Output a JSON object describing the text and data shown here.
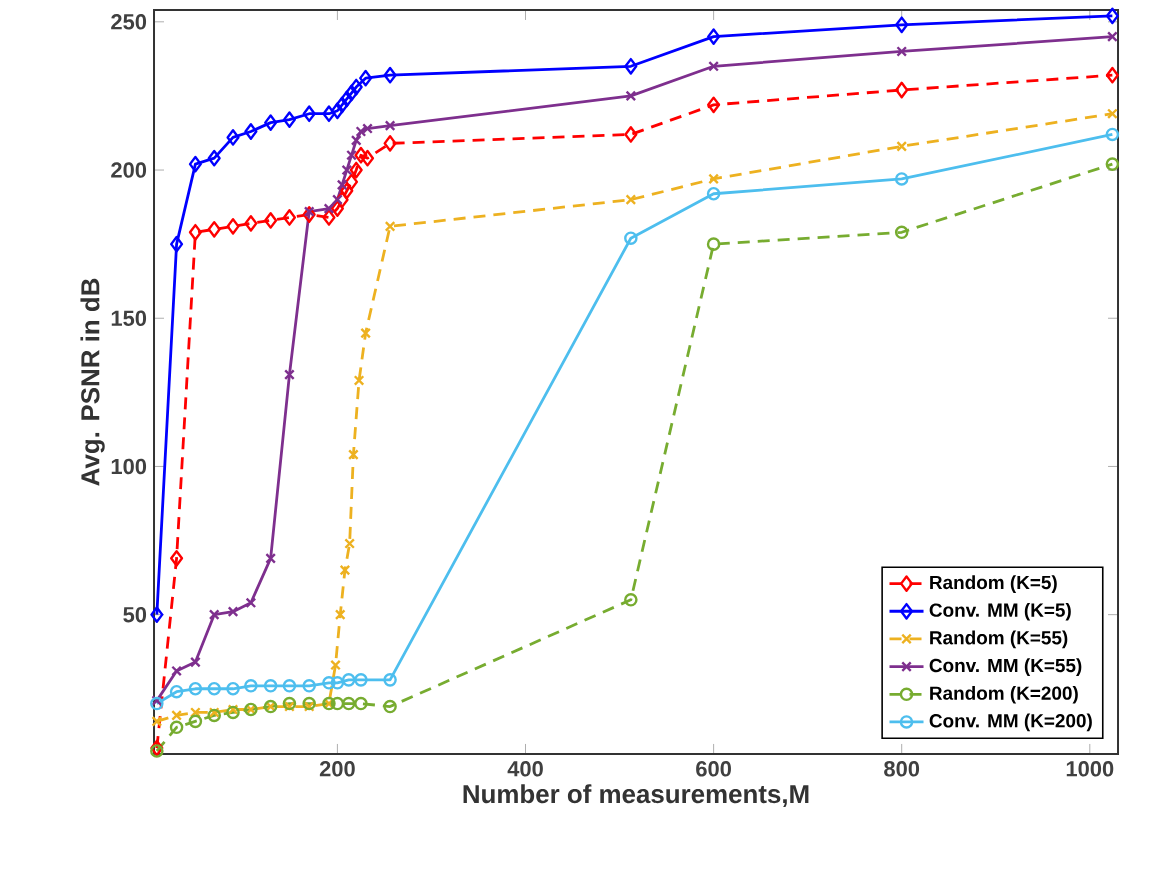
{
  "chart_data": {
    "type": "line",
    "xlabel": "Number of measurements,M",
    "ylabel": "Avg. PSNR in dB",
    "xlim": [
      5,
      1030
    ],
    "ylim": [
      3,
      254
    ],
    "xticks": [
      200,
      400,
      600,
      800,
      1000
    ],
    "yticks": [
      50,
      100,
      150,
      200,
      250
    ],
    "legend": "bottom right",
    "series": [
      {
        "name": "Random (K=5)",
        "color": "#ff0000",
        "marker": "diamond",
        "line_style": "dashed",
        "x": [
          8,
          29,
          49,
          69,
          89,
          108,
          129,
          149,
          170,
          191,
          200,
          205,
          210,
          215,
          220,
          225,
          232,
          256,
          512,
          600,
          800,
          1024
        ],
        "values": [
          5,
          69,
          179,
          180,
          181,
          182,
          183,
          184,
          185,
          184,
          187,
          190,
          193,
          196,
          200,
          205,
          204,
          209,
          212,
          222,
          227,
          232
        ]
      },
      {
        "name": "Conv. MM (K=5)",
        "color": "#0000ff",
        "marker": "diamond",
        "line_style": "solid",
        "x": [
          8,
          29,
          49,
          69,
          89,
          108,
          129,
          149,
          170,
          191,
          200,
          205,
          210,
          215,
          220,
          230,
          256,
          512,
          600,
          800,
          1024
        ],
        "values": [
          50,
          175,
          202,
          204,
          211,
          213,
          216,
          217,
          219,
          219,
          220,
          222,
          224,
          226,
          228,
          231,
          232,
          235,
          245,
          249,
          252
        ]
      },
      {
        "name": "Random (K=55)",
        "color": "#edb120",
        "marker": "cross",
        "line_style": "dashed",
        "x": [
          8,
          29,
          49,
          69,
          89,
          108,
          129,
          149,
          170,
          191,
          198,
          203,
          208,
          213,
          217,
          223,
          230,
          256,
          512,
          600,
          800,
          1024
        ],
        "values": [
          14,
          16,
          17,
          17,
          18,
          18,
          19,
          19,
          19,
          20,
          33,
          50,
          65,
          74,
          104,
          129,
          145,
          181,
          190,
          197,
          208,
          219
        ]
      },
      {
        "name": "Conv. MM (K=55)",
        "color": "#7e2f8e",
        "marker": "cross",
        "line_style": "solid",
        "x": [
          8,
          29,
          49,
          69,
          89,
          108,
          129,
          149,
          170,
          191,
          200,
          205,
          210,
          215,
          220,
          225,
          232,
          256,
          512,
          600,
          800,
          1024
        ],
        "values": [
          21,
          31,
          34,
          50,
          51,
          54,
          69,
          131,
          186,
          187,
          190,
          195,
          200,
          205,
          210,
          213,
          214,
          215,
          225,
          235,
          240,
          245
        ]
      },
      {
        "name": "Random (K=200)",
        "color": "#77ac30",
        "marker": "circle",
        "line_style": "dashed",
        "x": [
          8,
          29,
          49,
          69,
          89,
          108,
          129,
          149,
          170,
          191,
          200,
          212,
          225,
          256,
          512,
          600,
          800,
          1024
        ],
        "values": [
          4,
          12,
          14,
          16,
          17,
          18,
          19,
          20,
          20,
          20,
          20,
          20,
          20,
          19,
          55,
          175,
          179,
          202
        ]
      },
      {
        "name": "Conv. MM (K=200)",
        "color": "#4dbeee",
        "marker": "circle",
        "line_style": "solid",
        "x": [
          8,
          29,
          49,
          69,
          89,
          108,
          129,
          149,
          170,
          191,
          200,
          212,
          225,
          256,
          512,
          600,
          800,
          1024
        ],
        "values": [
          20,
          24,
          25,
          25,
          25,
          26,
          26,
          26,
          26,
          27,
          27,
          28,
          28,
          28,
          177,
          192,
          197,
          212
        ]
      }
    ]
  }
}
